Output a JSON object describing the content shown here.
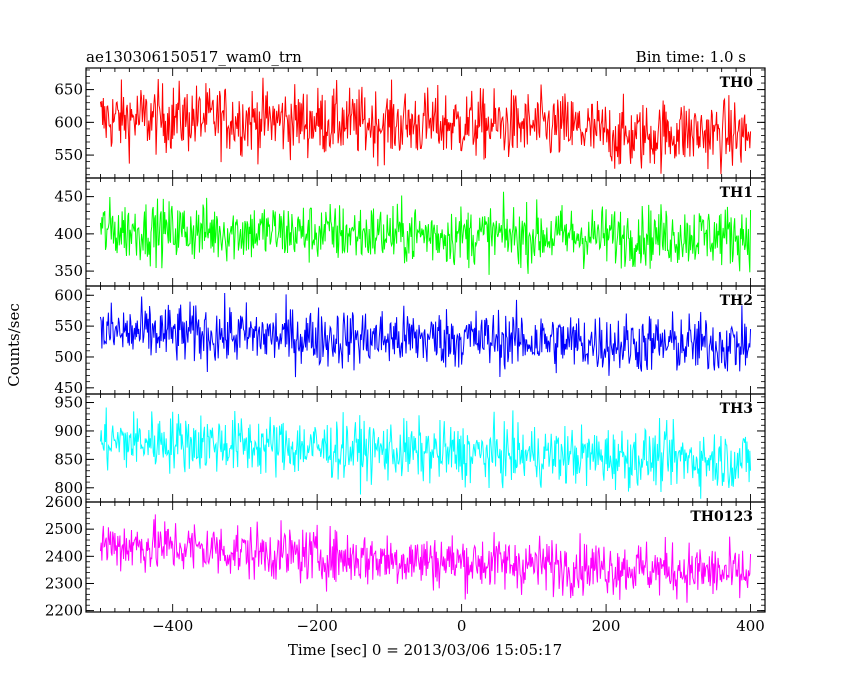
{
  "header": {
    "title": "ae130306150517_wam0_trn",
    "bin_time": "Bin time: 1.0 s"
  },
  "axes": {
    "ylabel": "Counts/sec",
    "xlabel": "Time [sec] 0 = 2013/03/06 15:05:17"
  },
  "chart_data": {
    "type": "line",
    "title": "ae130306150517_wam0_trn",
    "xlabel": "Time [sec] 0 = 2013/03/06 15:05:17",
    "ylabel": "Counts/sec",
    "xlim": [
      -520,
      420
    ],
    "x_range": [
      -500,
      400
    ],
    "x_step": 1.0,
    "xticks": [
      -400,
      -200,
      0,
      200,
      400
    ],
    "x_tick_labels": [
      "−400",
      "−200",
      "0",
      "200",
      "400"
    ],
    "panels": [
      {
        "name": "TH0",
        "color": "#ff0000",
        "ylim": [
          515,
          683
        ],
        "yticks": [
          550,
          600,
          650
        ],
        "mean_points": [
          [
            -500,
            605
          ],
          [
            -400,
            607
          ],
          [
            -250,
            603
          ],
          [
            -100,
            598
          ],
          [
            0,
            597
          ],
          [
            150,
            592
          ],
          [
            230,
            577
          ],
          [
            300,
            585
          ],
          [
            400,
            580
          ]
        ],
        "noise": 26
      },
      {
        "name": "TH1",
        "color": "#00ff00",
        "ylim": [
          330,
          475
        ],
        "yticks": [
          350,
          400,
          450
        ],
        "mean_points": [
          [
            -500,
            405
          ],
          [
            -300,
            403
          ],
          [
            0,
            398
          ],
          [
            200,
            397
          ],
          [
            400,
            398
          ]
        ],
        "noise": 20
      },
      {
        "name": "TH2",
        "color": "#0000ff",
        "ylim": [
          440,
          615
        ],
        "yticks": [
          450,
          500,
          550,
          600
        ],
        "mean_points": [
          [
            -500,
            540
          ],
          [
            -300,
            535
          ],
          [
            -150,
            530
          ],
          [
            0,
            530
          ],
          [
            200,
            522
          ],
          [
            400,
            520
          ]
        ],
        "noise": 24
      },
      {
        "name": "TH3",
        "color": "#00ffff",
        "ylim": [
          775,
          965
        ],
        "yticks": [
          800,
          850,
          900,
          950
        ],
        "mean_points": [
          [
            -500,
            880
          ],
          [
            -400,
            882
          ],
          [
            -200,
            870
          ],
          [
            0,
            860
          ],
          [
            200,
            855
          ],
          [
            400,
            848
          ]
        ],
        "noise": 26
      },
      {
        "name": "TH0123",
        "color": "#ff00ff",
        "ylim": [
          2195,
          2600
        ],
        "yticks": [
          2200,
          2300,
          2400,
          2500,
          2600
        ],
        "mean_points": [
          [
            -500,
            2445
          ],
          [
            -400,
            2435
          ],
          [
            -200,
            2400
          ],
          [
            0,
            2380
          ],
          [
            200,
            2360
          ],
          [
            300,
            2350
          ],
          [
            400,
            2330
          ]
        ],
        "noise": 50
      }
    ]
  }
}
